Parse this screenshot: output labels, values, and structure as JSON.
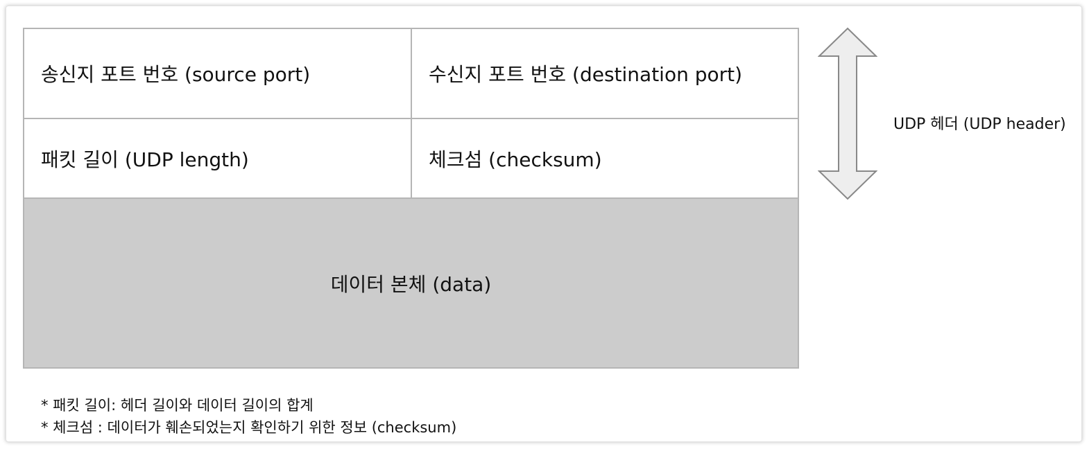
{
  "diagram": {
    "header_fields": {
      "source_port": "송신지 포트 번호 (source port)",
      "destination_port": "수신지 포트 번호 (destination port)",
      "udp_length": "패킷 길이 (UDP length)",
      "checksum": "체크섬 (checksum)"
    },
    "data_field": "데이터 본체 (data)",
    "header_brace_label": "UDP 헤더 (UDP header)",
    "notes": [
      "* 패킷 길이: 헤더 길이와 데이터 길이의 합계",
      "* 체크섬 : 데이터가 훼손되었는지 확인하기 위한 정보 (checksum)"
    ]
  },
  "colors": {
    "border": "#b5b5b5",
    "data_fill": "#cccccc",
    "arrow_fill": "#eeeeee",
    "arrow_stroke": "#888888"
  },
  "icons": {
    "header_span": "double-headed-vertical-arrow-icon"
  }
}
